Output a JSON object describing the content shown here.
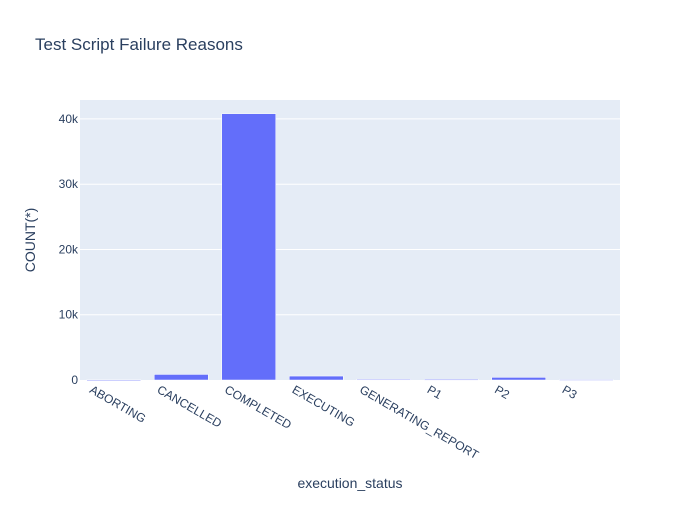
{
  "chart_data": {
    "type": "bar",
    "title": "Test Script Failure Reasons",
    "xlabel": "execution_status",
    "ylabel": "COUNT(*)",
    "categories": [
      "ABORTING",
      "CANCELLED",
      "COMPLETED",
      "EXECUTING",
      "GENERATING_REPORT",
      "P1",
      "P2",
      "P3"
    ],
    "values": [
      30,
      850,
      40800,
      600,
      120,
      100,
      400,
      60
    ],
    "ylim": [
      0,
      42900
    ],
    "yticks": [
      0,
      10000,
      20000,
      30000,
      40000
    ],
    "ytick_labels": [
      "0",
      "10k",
      "20k",
      "30k",
      "40k"
    ],
    "grid": true,
    "legend": "none",
    "colors": {
      "bar": "#636efa",
      "plot_bg": "#e5ecf6",
      "grid": "#ffffff",
      "text": "#2a3f5f",
      "paper_bg": "#ffffff"
    }
  }
}
